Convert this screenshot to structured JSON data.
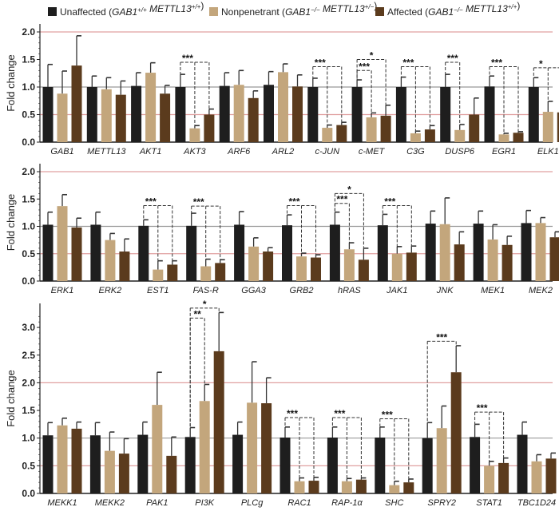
{
  "chart_data": {
    "legend": [
      {
        "name": "Unaffected",
        "parts": [
          {
            "t": "Unaffected ("
          },
          {
            "t": "GAB1",
            "i": true
          },
          {
            "t": "+/+",
            "i": true,
            "sup": true
          },
          {
            "t": " METTL13",
            "i": true
          },
          {
            "t": "+/+",
            "i": true,
            "sup": true
          },
          {
            "t": ")"
          }
        ]
      },
      {
        "name": "Nonpenetrant",
        "parts": [
          {
            "t": "Nonpenetrant ("
          },
          {
            "t": "GAB1",
            "i": true
          },
          {
            "t": "−/−",
            "i": true,
            "sup": true
          },
          {
            "t": " METTL13",
            "i": true
          },
          {
            "t": "+/−",
            "i": true,
            "sup": true
          },
          {
            "t": ")"
          }
        ]
      },
      {
        "name": "Affected",
        "parts": [
          {
            "t": "Affected ("
          },
          {
            "t": "GAB1",
            "i": true
          },
          {
            "t": "−/−",
            "i": true,
            "sup": true
          },
          {
            "t": " METTL13",
            "i": true
          },
          {
            "t": "+/+",
            "i": true,
            "sup": true
          },
          {
            "t": ")"
          }
        ]
      }
    ],
    "colors": [
      "#1e1e1e",
      "#c3a67c",
      "#5b3b1d"
    ],
    "reference_lines": [
      {
        "y": 0.5,
        "color": "#e0a0a0"
      },
      {
        "y": 1.0,
        "color": "#999999"
      },
      {
        "y": 2.0,
        "color": "#e0a0a0"
      }
    ],
    "panels": [
      {
        "type": "bar",
        "ylabel": "Fold change",
        "ylim": [
          0,
          2.1
        ],
        "yticks": [
          "0.0",
          "0.5",
          "1.0",
          "1.5",
          "2.0"
        ],
        "categories": [
          "GAB1",
          "METTL13",
          "AKT1",
          "AKT3",
          "ARF6",
          "ARL2",
          "c-JUN",
          "c-MET",
          "C3G",
          "DUSP6",
          "EGR1",
          "ELK1"
        ],
        "series": [
          {
            "name": "Unaffected",
            "values": [
              1.0,
              1.0,
              1.02,
              1.0,
              1.02,
              1.04,
              1.0,
              1.0,
              1.0,
              1.0,
              1.01,
              1.0
            ],
            "err_top": [
              1.41,
              1.2,
              1.26,
              1.23,
              1.26,
              1.28,
              1.16,
              1.13,
              1.18,
              1.23,
              1.2,
              1.17
            ]
          },
          {
            "name": "Nonpenetrant",
            "values": [
              0.88,
              0.96,
              1.26,
              0.25,
              1.04,
              1.27,
              0.26,
              0.45,
              0.16,
              0.22,
              0.14,
              0.55
            ],
            "err_top": [
              1.29,
              1.17,
              1.44,
              0.3,
              1.3,
              1.42,
              0.31,
              0.53,
              0.2,
              0.32,
              0.16,
              0.74
            ]
          },
          {
            "name": "Affected",
            "values": [
              1.39,
              0.86,
              0.88,
              0.5,
              0.8,
              1.01,
              0.31,
              0.48,
              0.23,
              0.5,
              0.17,
              0.54
            ],
            "err_top": [
              1.93,
              1.11,
              1.03,
              0.6,
              0.93,
              1.22,
              0.36,
              0.67,
              0.3,
              0.8,
              0.19,
              0.66
            ]
          }
        ],
        "significance": [
          {
            "category": "AKT3",
            "label": "***",
            "level": 1.45,
            "bars": [
              0,
              1,
              2
            ]
          },
          {
            "category": "c-JUN",
            "label": "***",
            "level": 1.37,
            "bars": [
              0,
              1,
              2
            ]
          },
          {
            "category": "c-MET",
            "label": "***",
            "level": 1.3,
            "bars": [
              0,
              1
            ]
          },
          {
            "category": "c-MET",
            "label": "*",
            "level": 1.5,
            "bars": [
              0,
              2
            ]
          },
          {
            "category": "C3G",
            "label": "***",
            "level": 1.37,
            "bars": [
              0,
              1,
              2
            ]
          },
          {
            "category": "DUSP6",
            "label": "***",
            "level": 1.45,
            "bars": [
              0,
              1
            ]
          },
          {
            "category": "EGR1",
            "label": "***",
            "level": 1.37,
            "bars": [
              0,
              1,
              2
            ]
          },
          {
            "category": "ELK1",
            "label": "*",
            "level": 1.35,
            "bars": [
              0,
              1,
              2
            ]
          }
        ]
      },
      {
        "type": "bar",
        "ylabel": "Fold change",
        "ylim": [
          0,
          2.1
        ],
        "yticks": [
          "0.0",
          "0.5",
          "1.0",
          "1.5",
          "2.0"
        ],
        "categories": [
          "ERK1",
          "ERK2",
          "EST1",
          "FAS-R",
          "GGA3",
          "GRB2",
          "hRAS",
          "JAK1",
          "JNK",
          "MEK1",
          "MEK2"
        ],
        "series": [
          {
            "name": "Unaffected",
            "values": [
              1.03,
              1.03,
              1.01,
              1.01,
              1.03,
              1.02,
              1.03,
              1.02,
              1.05,
              1.05,
              1.06
            ],
            "err_top": [
              1.26,
              1.26,
              1.12,
              1.24,
              1.27,
              1.21,
              1.26,
              1.22,
              1.28,
              1.28,
              1.29
            ]
          },
          {
            "name": "Nonpenetrant",
            "values": [
              1.37,
              0.75,
              0.21,
              0.27,
              0.63,
              0.45,
              0.58,
              0.5,
              1.04,
              0.76,
              1.06
            ],
            "err_top": [
              1.58,
              0.87,
              0.37,
              0.4,
              0.79,
              0.51,
              0.7,
              0.63,
              1.52,
              1.03,
              1.16
            ]
          },
          {
            "name": "Affected",
            "values": [
              0.98,
              0.54,
              0.3,
              0.33,
              0.54,
              0.43,
              0.39,
              0.52,
              0.67,
              0.66,
              0.8
            ],
            "err_top": [
              1.15,
              0.77,
              0.37,
              0.39,
              0.61,
              0.48,
              0.6,
              0.64,
              0.9,
              0.82,
              0.9
            ]
          }
        ],
        "significance": [
          {
            "category": "EST1",
            "label": "***",
            "level": 1.38,
            "bars": [
              0,
              1,
              2
            ]
          },
          {
            "category": "FAS-R",
            "label": "***",
            "level": 1.37,
            "bars": [
              0,
              1,
              2
            ]
          },
          {
            "category": "GRB2",
            "label": "***",
            "level": 1.38,
            "bars": [
              0,
              1,
              2
            ]
          },
          {
            "category": "hRAS",
            "label": "***",
            "level": 1.42,
            "bars": [
              0,
              1
            ]
          },
          {
            "category": "hRAS",
            "label": "*",
            "level": 1.6,
            "bars": [
              0,
              2
            ]
          },
          {
            "category": "JAK1",
            "label": "***",
            "level": 1.38,
            "bars": [
              0,
              1,
              2
            ]
          }
        ]
      },
      {
        "type": "bar",
        "ylabel": "Fold change",
        "ylim": [
          0,
          3.25
        ],
        "yticks": [
          "0.0",
          "0.5",
          "1.0",
          "1.5",
          "2.0",
          "2.5",
          "3.0"
        ],
        "categories": [
          "MEKK1",
          "MEKK2",
          "PAK1",
          "PI3K",
          "PLCg",
          "RAC1",
          "RAP-1α",
          "SHC",
          "SPRY2",
          "STAT1",
          "TBC1D24"
        ],
        "series": [
          {
            "name": "Unaffected",
            "values": [
              1.05,
              1.05,
              1.06,
              1.02,
              1.06,
              1.01,
              1.01,
              1.01,
              1.0,
              1.02,
              1.06
            ],
            "err_top": [
              1.28,
              1.28,
              1.29,
              1.19,
              1.29,
              1.2,
              1.2,
              1.2,
              1.28,
              1.25,
              1.29
            ]
          },
          {
            "name": "Nonpenetrant",
            "values": [
              1.23,
              0.77,
              1.6,
              1.67,
              1.64,
              0.22,
              0.22,
              0.15,
              1.18,
              0.5,
              0.58
            ],
            "err_top": [
              1.36,
              1.11,
              2.19,
              1.97,
              2.38,
              0.28,
              0.27,
              0.22,
              1.58,
              0.58,
              0.7
            ]
          },
          {
            "name": "Affected",
            "values": [
              1.17,
              0.72,
              0.68,
              2.57,
              1.63,
              0.23,
              0.25,
              0.2,
              2.19,
              0.55,
              0.63
            ],
            "err_top": [
              1.29,
              0.99,
              1.02,
              3.27,
              2.09,
              0.29,
              0.28,
              0.26,
              2.67,
              0.64,
              0.73
            ]
          }
        ],
        "significance": [
          {
            "category": "PI3K",
            "label": "**",
            "level": 3.17,
            "bars": [
              0,
              1
            ]
          },
          {
            "category": "PI3K",
            "label": "*",
            "level": 3.35,
            "bars": [
              0,
              2
            ]
          },
          {
            "category": "RAC1",
            "label": "***",
            "level": 1.37,
            "bars": [
              0,
              1,
              2
            ]
          },
          {
            "category": "RAP-1α",
            "label": "***",
            "level": 1.37,
            "bars": [
              0,
              1,
              2
            ]
          },
          {
            "category": "SHC",
            "label": "***",
            "level": 1.35,
            "bars": [
              0,
              1,
              2
            ]
          },
          {
            "category": "SPRY2",
            "label": "***",
            "level": 2.75,
            "bars": [
              0,
              2
            ]
          },
          {
            "category": "STAT1",
            "label": "***",
            "level": 1.47,
            "bars": [
              0,
              1,
              2
            ]
          }
        ]
      }
    ]
  }
}
